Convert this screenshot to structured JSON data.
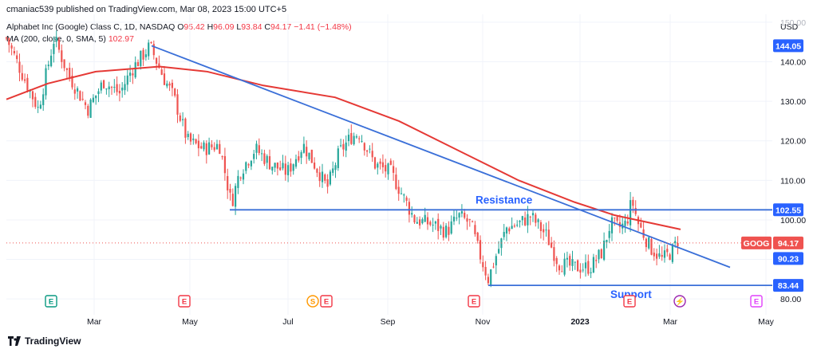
{
  "header": {
    "published": "cmaniac539 published on TradingView.com, Mar 08, 2023 15:00 UTC+5"
  },
  "legend": {
    "symbol": "Alphabet Inc (Google) Class C, 1D, NASDAQ",
    "o_label": "O",
    "o_val": "95.42",
    "h_label": "H",
    "h_val": "96.09",
    "l_label": "L",
    "l_val": "93.84",
    "c_label": "C",
    "c_val": "94.17",
    "change": "−1.41 (−1.48%)",
    "ma_label": "MA (200, close, 0, SMA, 5)",
    "ma_val": "102.97"
  },
  "brand": {
    "name": "TradingView"
  },
  "colors": {
    "up": "#26a69a",
    "down": "#ef5350",
    "ma": "#e53935",
    "trend": "#3a6fd8",
    "accent": "#2962ff",
    "grid": "#f0f3fa"
  },
  "chart_data": {
    "type": "candlestick",
    "currency": "USD",
    "y_range": [
      76,
      152
    ],
    "y_ticks": [
      80,
      90,
      100,
      110,
      120,
      130,
      140,
      150
    ],
    "x_labels": [
      "Mar",
      "May",
      "Jul",
      "Sep",
      "Nov",
      "2023",
      "Mar",
      "May"
    ],
    "price_badges": [
      {
        "label": "144.05",
        "value": 144.05
      },
      {
        "label": "102.55",
        "value": 102.55
      },
      {
        "label": "90.23",
        "value": 90.23
      },
      {
        "label": "83.44",
        "value": 83.44
      }
    ],
    "last_price": {
      "symbol": "GOOG",
      "value": 94.17,
      "label": "94.17"
    },
    "annotations": [
      {
        "text": "Resistance",
        "level": 102.55
      },
      {
        "text": "Support",
        "level": 83.44
      }
    ],
    "events": [
      {
        "icon": "E",
        "kind": "earnings"
      },
      {
        "icon": "E",
        "kind": "earnings"
      },
      {
        "icon": "S",
        "kind": "split"
      },
      {
        "icon": "E",
        "kind": "earnings"
      },
      {
        "icon": "E",
        "kind": "earnings"
      },
      {
        "icon": "E",
        "kind": "earnings"
      },
      {
        "icon": "⚡",
        "kind": "dividend"
      },
      {
        "icon": "E",
        "kind": "earnings"
      }
    ],
    "series": [
      {
        "name": "GOOG",
        "type": "candles"
      },
      {
        "name": "MA (200, close, 0, SMA, 5)",
        "type": "line"
      }
    ]
  }
}
